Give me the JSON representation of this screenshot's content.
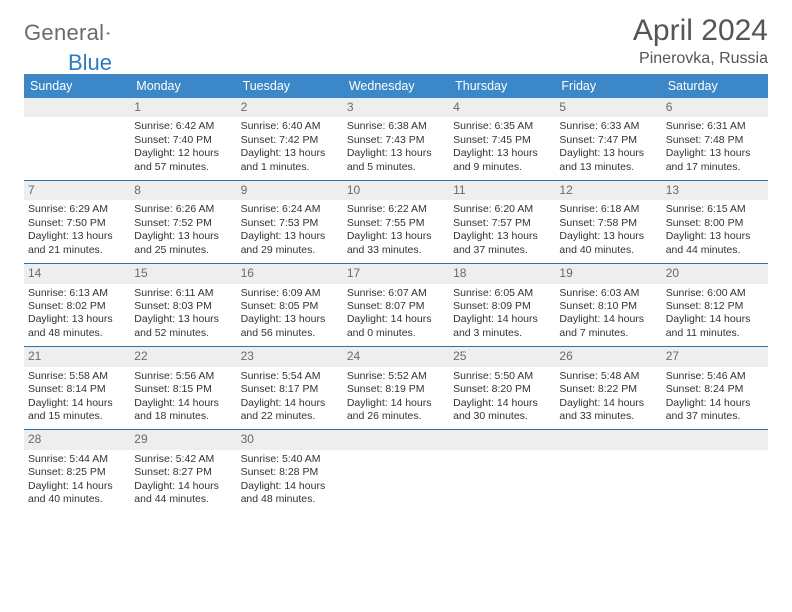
{
  "brand": {
    "name_gray": "General",
    "name_blue": "Blue"
  },
  "title": "April 2024",
  "location": "Pinerovka, Russia",
  "colors": {
    "header_bg": "#3b87c8",
    "header_text": "#ffffff",
    "daynum_bg": "#eeeeee",
    "daynum_text": "#6a6a6a",
    "cell_border": "#2d6fa8",
    "body_text": "#333333",
    "title_text": "#555555",
    "logo_gray": "#6b6b6b",
    "logo_blue": "#2d7cc1"
  },
  "dow": [
    "Sunday",
    "Monday",
    "Tuesday",
    "Wednesday",
    "Thursday",
    "Friday",
    "Saturday"
  ],
  "weeks": [
    [
      {
        "n": "",
        "lines": []
      },
      {
        "n": "1",
        "lines": [
          "Sunrise: 6:42 AM",
          "Sunset: 7:40 PM",
          "Daylight: 12 hours",
          "and 57 minutes."
        ]
      },
      {
        "n": "2",
        "lines": [
          "Sunrise: 6:40 AM",
          "Sunset: 7:42 PM",
          "Daylight: 13 hours",
          "and 1 minutes."
        ]
      },
      {
        "n": "3",
        "lines": [
          "Sunrise: 6:38 AM",
          "Sunset: 7:43 PM",
          "Daylight: 13 hours",
          "and 5 minutes."
        ]
      },
      {
        "n": "4",
        "lines": [
          "Sunrise: 6:35 AM",
          "Sunset: 7:45 PM",
          "Daylight: 13 hours",
          "and 9 minutes."
        ]
      },
      {
        "n": "5",
        "lines": [
          "Sunrise: 6:33 AM",
          "Sunset: 7:47 PM",
          "Daylight: 13 hours",
          "and 13 minutes."
        ]
      },
      {
        "n": "6",
        "lines": [
          "Sunrise: 6:31 AM",
          "Sunset: 7:48 PM",
          "Daylight: 13 hours",
          "and 17 minutes."
        ]
      }
    ],
    [
      {
        "n": "7",
        "lines": [
          "Sunrise: 6:29 AM",
          "Sunset: 7:50 PM",
          "Daylight: 13 hours",
          "and 21 minutes."
        ]
      },
      {
        "n": "8",
        "lines": [
          "Sunrise: 6:26 AM",
          "Sunset: 7:52 PM",
          "Daylight: 13 hours",
          "and 25 minutes."
        ]
      },
      {
        "n": "9",
        "lines": [
          "Sunrise: 6:24 AM",
          "Sunset: 7:53 PM",
          "Daylight: 13 hours",
          "and 29 minutes."
        ]
      },
      {
        "n": "10",
        "lines": [
          "Sunrise: 6:22 AM",
          "Sunset: 7:55 PM",
          "Daylight: 13 hours",
          "and 33 minutes."
        ]
      },
      {
        "n": "11",
        "lines": [
          "Sunrise: 6:20 AM",
          "Sunset: 7:57 PM",
          "Daylight: 13 hours",
          "and 37 minutes."
        ]
      },
      {
        "n": "12",
        "lines": [
          "Sunrise: 6:18 AM",
          "Sunset: 7:58 PM",
          "Daylight: 13 hours",
          "and 40 minutes."
        ]
      },
      {
        "n": "13",
        "lines": [
          "Sunrise: 6:15 AM",
          "Sunset: 8:00 PM",
          "Daylight: 13 hours",
          "and 44 minutes."
        ]
      }
    ],
    [
      {
        "n": "14",
        "lines": [
          "Sunrise: 6:13 AM",
          "Sunset: 8:02 PM",
          "Daylight: 13 hours",
          "and 48 minutes."
        ]
      },
      {
        "n": "15",
        "lines": [
          "Sunrise: 6:11 AM",
          "Sunset: 8:03 PM",
          "Daylight: 13 hours",
          "and 52 minutes."
        ]
      },
      {
        "n": "16",
        "lines": [
          "Sunrise: 6:09 AM",
          "Sunset: 8:05 PM",
          "Daylight: 13 hours",
          "and 56 minutes."
        ]
      },
      {
        "n": "17",
        "lines": [
          "Sunrise: 6:07 AM",
          "Sunset: 8:07 PM",
          "Daylight: 14 hours",
          "and 0 minutes."
        ]
      },
      {
        "n": "18",
        "lines": [
          "Sunrise: 6:05 AM",
          "Sunset: 8:09 PM",
          "Daylight: 14 hours",
          "and 3 minutes."
        ]
      },
      {
        "n": "19",
        "lines": [
          "Sunrise: 6:03 AM",
          "Sunset: 8:10 PM",
          "Daylight: 14 hours",
          "and 7 minutes."
        ]
      },
      {
        "n": "20",
        "lines": [
          "Sunrise: 6:00 AM",
          "Sunset: 8:12 PM",
          "Daylight: 14 hours",
          "and 11 minutes."
        ]
      }
    ],
    [
      {
        "n": "21",
        "lines": [
          "Sunrise: 5:58 AM",
          "Sunset: 8:14 PM",
          "Daylight: 14 hours",
          "and 15 minutes."
        ]
      },
      {
        "n": "22",
        "lines": [
          "Sunrise: 5:56 AM",
          "Sunset: 8:15 PM",
          "Daylight: 14 hours",
          "and 18 minutes."
        ]
      },
      {
        "n": "23",
        "lines": [
          "Sunrise: 5:54 AM",
          "Sunset: 8:17 PM",
          "Daylight: 14 hours",
          "and 22 minutes."
        ]
      },
      {
        "n": "24",
        "lines": [
          "Sunrise: 5:52 AM",
          "Sunset: 8:19 PM",
          "Daylight: 14 hours",
          "and 26 minutes."
        ]
      },
      {
        "n": "25",
        "lines": [
          "Sunrise: 5:50 AM",
          "Sunset: 8:20 PM",
          "Daylight: 14 hours",
          "and 30 minutes."
        ]
      },
      {
        "n": "26",
        "lines": [
          "Sunrise: 5:48 AM",
          "Sunset: 8:22 PM",
          "Daylight: 14 hours",
          "and 33 minutes."
        ]
      },
      {
        "n": "27",
        "lines": [
          "Sunrise: 5:46 AM",
          "Sunset: 8:24 PM",
          "Daylight: 14 hours",
          "and 37 minutes."
        ]
      }
    ],
    [
      {
        "n": "28",
        "lines": [
          "Sunrise: 5:44 AM",
          "Sunset: 8:25 PM",
          "Daylight: 14 hours",
          "and 40 minutes."
        ]
      },
      {
        "n": "29",
        "lines": [
          "Sunrise: 5:42 AM",
          "Sunset: 8:27 PM",
          "Daylight: 14 hours",
          "and 44 minutes."
        ]
      },
      {
        "n": "30",
        "lines": [
          "Sunrise: 5:40 AM",
          "Sunset: 8:28 PM",
          "Daylight: 14 hours",
          "and 48 minutes."
        ]
      },
      {
        "n": "",
        "lines": []
      },
      {
        "n": "",
        "lines": []
      },
      {
        "n": "",
        "lines": []
      },
      {
        "n": "",
        "lines": []
      }
    ]
  ]
}
